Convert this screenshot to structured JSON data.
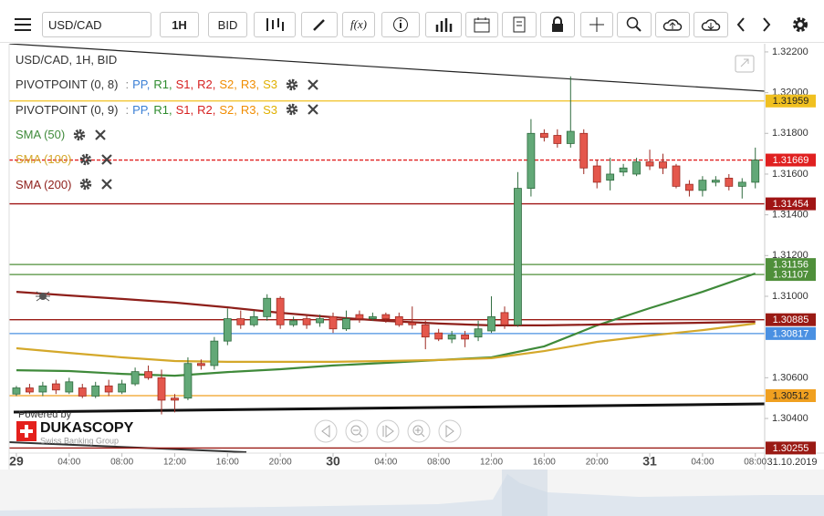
{
  "toolbar": {
    "symbol": "USD/CAD",
    "timeframe": "1H",
    "side": "BID",
    "fx": "f(x)"
  },
  "chart_data": {
    "type": "candlestick",
    "title": "USD/CAD, 1H, BID",
    "x": [
      0,
      1,
      2,
      3,
      4,
      5,
      6,
      7,
      8,
      9,
      10,
      11,
      12,
      13,
      14,
      15,
      16,
      17,
      18,
      19,
      20,
      21,
      22,
      23,
      24,
      25,
      26,
      27,
      28,
      29,
      30,
      31,
      32,
      33,
      34,
      35,
      36,
      37,
      38,
      39,
      40,
      41,
      42,
      43,
      44,
      45,
      46,
      47,
      48,
      49,
      50,
      51,
      52,
      53,
      54,
      55,
      56
    ],
    "open": [
      1.3052,
      1.3055,
      1.3053,
      1.3057,
      1.3053,
      1.3055,
      1.3051,
      1.3056,
      1.3053,
      1.3057,
      1.3063,
      1.306,
      1.305,
      1.305,
      1.3067,
      1.3066,
      1.3078,
      1.3089,
      1.3086,
      1.309,
      1.3099,
      1.3086,
      1.3089,
      1.3087,
      1.309,
      1.3084,
      1.3091,
      1.3089,
      1.3091,
      1.309,
      1.3087,
      1.3086,
      1.3082,
      1.3079,
      1.3081,
      1.308,
      1.3083,
      1.3092,
      1.3086,
      1.3153,
      1.318,
      1.3179,
      1.3175,
      1.318,
      1.3164,
      1.3157,
      1.3161,
      1.316,
      1.3166,
      1.3166,
      1.3164,
      1.3155,
      1.3152,
      1.3156,
      1.3158,
      1.3154,
      1.3156
    ],
    "high": [
      1.3056,
      1.3057,
      1.3058,
      1.3059,
      1.306,
      1.3057,
      1.3058,
      1.3059,
      1.3059,
      1.3065,
      1.3066,
      1.3064,
      1.3052,
      1.307,
      1.3069,
      1.308,
      1.3094,
      1.3093,
      1.3093,
      1.3101,
      1.31,
      1.309,
      1.3091,
      1.3091,
      1.3092,
      1.3093,
      1.3093,
      1.3092,
      1.3092,
      1.3092,
      1.3095,
      1.3088,
      1.3084,
      1.3083,
      1.3083,
      1.3088,
      1.31,
      1.3095,
      1.3161,
      1.3187,
      1.3182,
      1.3182,
      1.3208,
      1.3182,
      1.3167,
      1.3168,
      1.3165,
      1.3168,
      1.3172,
      1.317,
      1.3165,
      1.3157,
      1.3159,
      1.3159,
      1.316,
      1.3158,
      1.3173
    ],
    "low": [
      1.3051,
      1.3052,
      1.3051,
      1.3052,
      1.3052,
      1.305,
      1.305,
      1.3051,
      1.3052,
      1.3056,
      1.3059,
      1.3042,
      1.3043,
      1.3049,
      1.3064,
      1.3064,
      1.3076,
      1.3084,
      1.3085,
      1.3088,
      1.3084,
      1.3085,
      1.3084,
      1.3085,
      1.3082,
      1.3083,
      1.3087,
      1.3088,
      1.3087,
      1.3085,
      1.3084,
      1.3074,
      1.3078,
      1.3077,
      1.3075,
      1.3078,
      1.3082,
      1.3084,
      1.3085,
      1.3149,
      1.3176,
      1.3173,
      1.3173,
      1.316,
      1.3153,
      1.3152,
      1.3159,
      1.3159,
      1.3162,
      1.316,
      1.3153,
      1.3149,
      1.3149,
      1.3154,
      1.3152,
      1.3148,
      1.3153
    ],
    "close": [
      1.3055,
      1.3053,
      1.3056,
      1.3054,
      1.3058,
      1.3051,
      1.3056,
      1.3053,
      1.3057,
      1.3063,
      1.306,
      1.3049,
      1.3049,
      1.3067,
      1.3066,
      1.3078,
      1.3089,
      1.3086,
      1.309,
      1.3099,
      1.3086,
      1.3088,
      1.3086,
      1.3089,
      1.3084,
      1.3089,
      1.3089,
      1.309,
      1.3089,
      1.3086,
      1.3086,
      1.308,
      1.3079,
      1.3081,
      1.3079,
      1.3084,
      1.309,
      1.3086,
      1.3153,
      1.318,
      1.3178,
      1.3175,
      1.3181,
      1.3163,
      1.3156,
      1.316,
      1.3163,
      1.3166,
      1.3164,
      1.3163,
      1.3154,
      1.3152,
      1.3157,
      1.3157,
      1.3154,
      1.3156,
      1.31669
    ],
    "up_color": "#62a877",
    "down_color": "#e4574c",
    "xlim": [
      -0.55,
      56.71
    ],
    "xticks": [
      {
        "value": 0,
        "label": "29"
      },
      {
        "value": 4,
        "label": "04:00"
      },
      {
        "value": 8,
        "label": "08:00"
      },
      {
        "value": 12,
        "label": "12:00"
      },
      {
        "value": 16,
        "label": "16:00"
      },
      {
        "value": 20,
        "label": "20:00"
      },
      {
        "value": 24,
        "label": "30"
      },
      {
        "value": 28,
        "label": "04:00"
      },
      {
        "value": 32,
        "label": "08:00"
      },
      {
        "value": 36,
        "label": "12:00"
      },
      {
        "value": 40,
        "label": "16:00"
      },
      {
        "value": 44,
        "label": "20:00"
      },
      {
        "value": 48,
        "label": "31"
      },
      {
        "value": 52,
        "label": "04:00"
      },
      {
        "value": 56,
        "label": "08:00"
      }
    ],
    "date_label": "31.10.2019",
    "ylim": [
      1.3023,
      1.3224
    ],
    "yticks": [
      {
        "value": 1.322,
        "label": "1.32200"
      },
      {
        "value": 1.32,
        "label": "1.32000"
      },
      {
        "value": 1.318,
        "label": "1.31800"
      },
      {
        "value": 1.316,
        "label": "1.31600"
      },
      {
        "value": 1.314,
        "label": "1.31400"
      },
      {
        "value": 1.312,
        "label": "1.31200"
      },
      {
        "value": 1.31,
        "label": "1.31000"
      },
      {
        "value": 1.306,
        "label": "1.30600"
      },
      {
        "value": 1.304,
        "label": "1.30400"
      }
    ],
    "series": [
      {
        "name": "SMA (50)",
        "color": "#3f8a3a",
        "x": [
          0,
          4,
          8,
          12,
          16,
          20,
          24,
          28,
          32,
          36,
          40,
          44,
          48,
          52,
          56
        ],
        "values": [
          1.30637,
          1.30633,
          1.30619,
          1.3061,
          1.30628,
          1.30642,
          1.3066,
          1.30673,
          1.30687,
          1.307,
          1.30754,
          1.30857,
          1.30942,
          1.31022,
          1.31112
        ]
      },
      {
        "name": "SMA (100)",
        "color": "#d4a82a",
        "x": [
          0,
          4,
          8,
          12,
          16,
          20,
          24,
          28,
          32,
          36,
          40,
          44,
          48,
          52,
          56
        ],
        "values": [
          1.30745,
          1.30722,
          1.307,
          1.30682,
          1.30678,
          1.30678,
          1.30678,
          1.30682,
          1.30687,
          1.30696,
          1.30731,
          1.30776,
          1.30807,
          1.30834,
          1.30866
        ]
      },
      {
        "name": "SMA (200)",
        "color": "#8e1f1a",
        "x": [
          0,
          4,
          8,
          12,
          16,
          20,
          24,
          28,
          32,
          36,
          40,
          44,
          48,
          52,
          56
        ],
        "values": [
          1.31022,
          1.31004,
          1.30987,
          1.30969,
          1.30946,
          1.30919,
          1.30897,
          1.30879,
          1.30866,
          1.30857,
          1.30857,
          1.30861,
          1.30866,
          1.3087,
          1.30875
        ]
      }
    ],
    "pivot_indicators": [
      "PIVOTPOINT (0, 8)",
      "PIVOTPOINT (0, 9)"
    ],
    "pivot_prefix": ":",
    "pivot_levels": [
      "PP,",
      "R1,",
      "S1,",
      "R2,",
      "S2,",
      "R3,",
      "S3"
    ],
    "pivot_colors": [
      "#3a7fd5",
      "#2e8b2e",
      "#d62020",
      "#d62020",
      "#f08c00",
      "#f08c00",
      "#e0b000"
    ],
    "levels": [
      {
        "value": 1.31959,
        "color": "#f0c020",
        "text_color": "#222"
      },
      {
        "value": 1.31669,
        "color": "#e02020",
        "text_color": "#fff",
        "style": "dashed"
      },
      {
        "value": 1.31454,
        "color": "#a01414",
        "text_color": "#fff"
      },
      {
        "value": 1.31156,
        "color": "#4f8f3a",
        "text_color": "#fff"
      },
      {
        "value": 1.31107,
        "color": "#4f8f3a",
        "text_color": "#fff"
      },
      {
        "value": 1.30885,
        "color": "#9a1a14",
        "text_color": "#fff"
      },
      {
        "value": 1.30817,
        "color": "#4a90e2",
        "text_color": "#fff"
      },
      {
        "value": 1.30512,
        "color": "#f0a020",
        "text_color": "#222"
      },
      {
        "value": 1.30255,
        "color": "#9a1a14",
        "text_color": "#fff"
      }
    ]
  },
  "branding": {
    "powered": "Powered by",
    "name": "DUKASCOPY",
    "tagline": "Swiss Banking Group"
  }
}
